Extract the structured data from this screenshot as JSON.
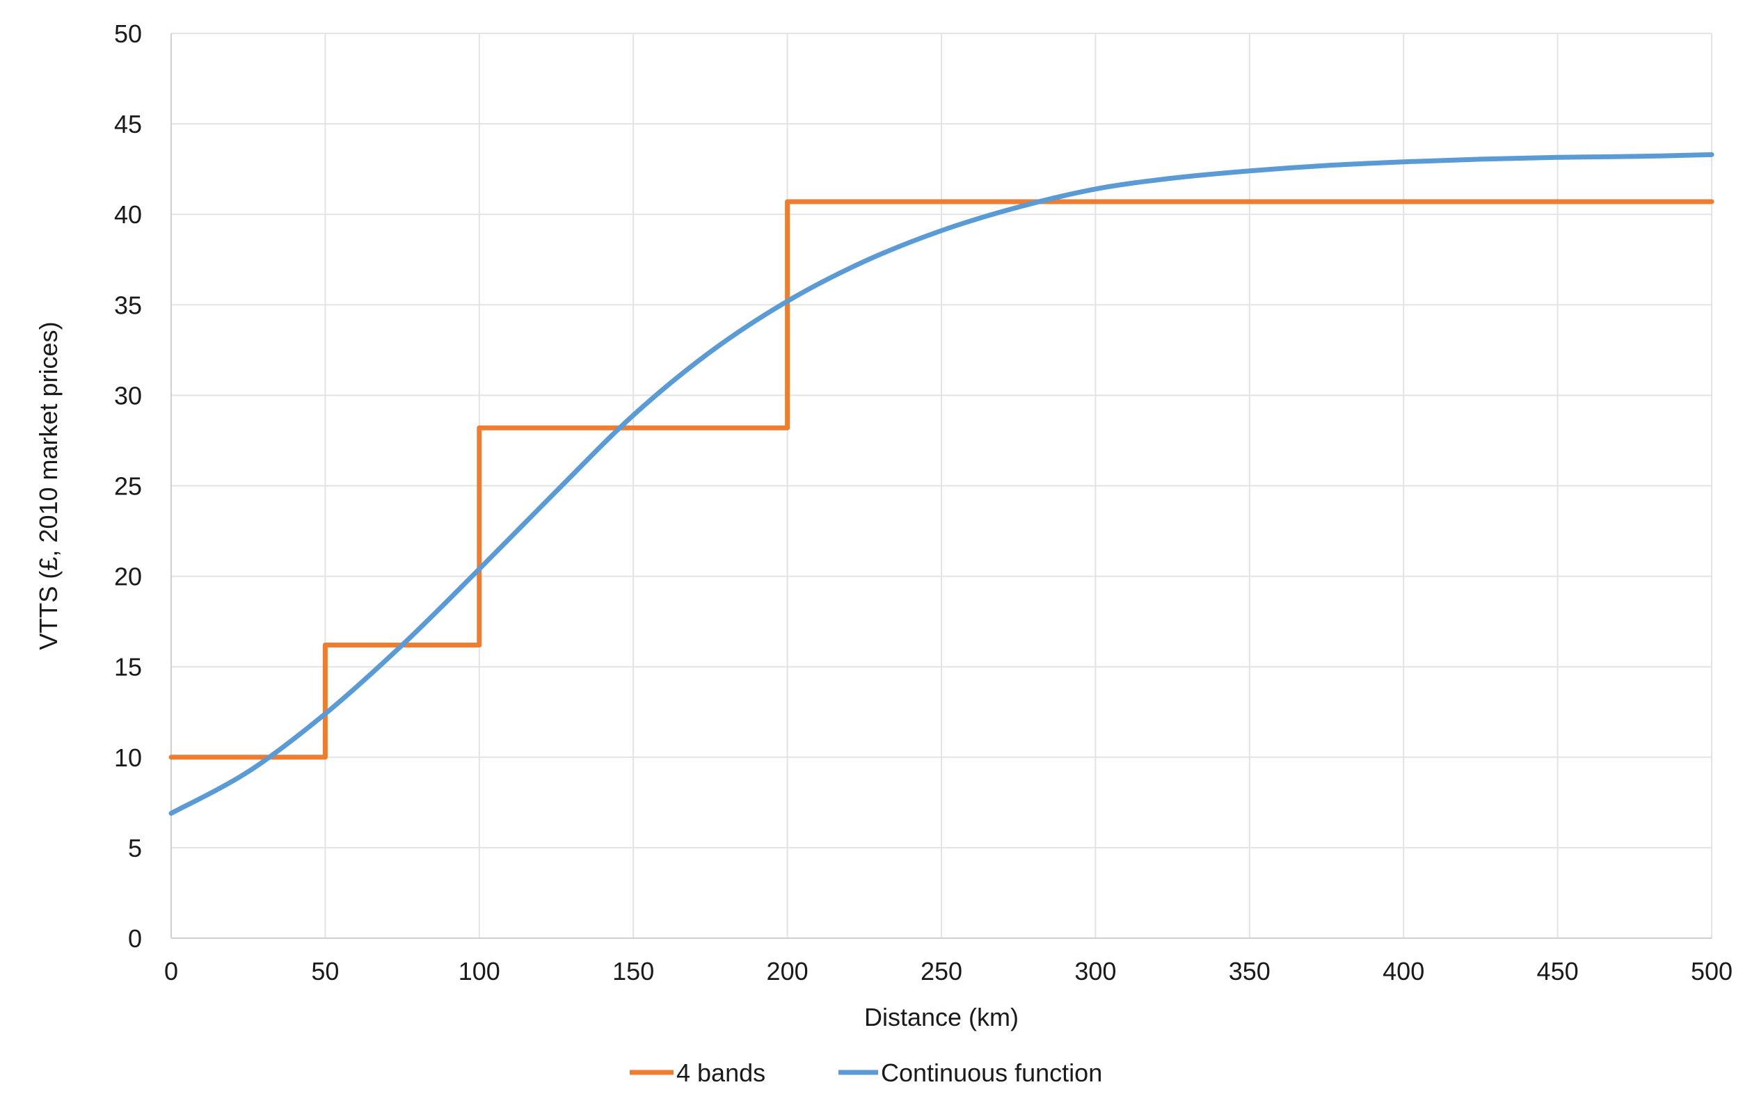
{
  "chart_data": {
    "type": "line",
    "title": "",
    "xlabel": "Distance (km)",
    "ylabel": "VTTS (£, 2010 market prices)",
    "xlim": [
      0,
      500
    ],
    "ylim": [
      0,
      50
    ],
    "x_ticks": [
      0,
      50,
      100,
      150,
      200,
      250,
      300,
      350,
      400,
      450,
      500
    ],
    "x_tick_labels": [
      "0",
      "50",
      "100",
      "150",
      "200",
      "250",
      "300",
      "350",
      "400",
      "450",
      "500"
    ],
    "y_ticks": [
      0,
      5,
      10,
      15,
      20,
      25,
      30,
      35,
      40,
      45,
      50
    ],
    "y_tick_labels": [
      "0",
      "5",
      "10",
      "15",
      "20",
      "25",
      "30",
      "35",
      "40",
      "45",
      "50"
    ],
    "grid": true,
    "legend_position": "bottom-center",
    "series": [
      {
        "name": "4 bands",
        "color": "#ED7D31",
        "style": "step",
        "x": [
          0,
          50,
          50,
          100,
          100,
          200,
          200,
          500
        ],
        "y": [
          10,
          10,
          16.2,
          16.2,
          28.2,
          28.2,
          40.7,
          40.7
        ]
      },
      {
        "name": "Continuous function",
        "color": "#5B9BD5",
        "style": "smooth",
        "x": [
          0,
          25,
          50,
          75,
          100,
          125,
          150,
          175,
          200,
          225,
          250,
          275,
          300,
          325,
          350,
          375,
          400,
          425,
          450,
          475,
          500
        ],
        "y": [
          6.9,
          9.2,
          12.4,
          16.2,
          20.4,
          24.7,
          28.9,
          32.4,
          35.2,
          37.4,
          39.1,
          40.4,
          41.4,
          42.0,
          42.4,
          42.7,
          42.9,
          43.05,
          43.15,
          43.2,
          43.3
        ]
      }
    ]
  }
}
